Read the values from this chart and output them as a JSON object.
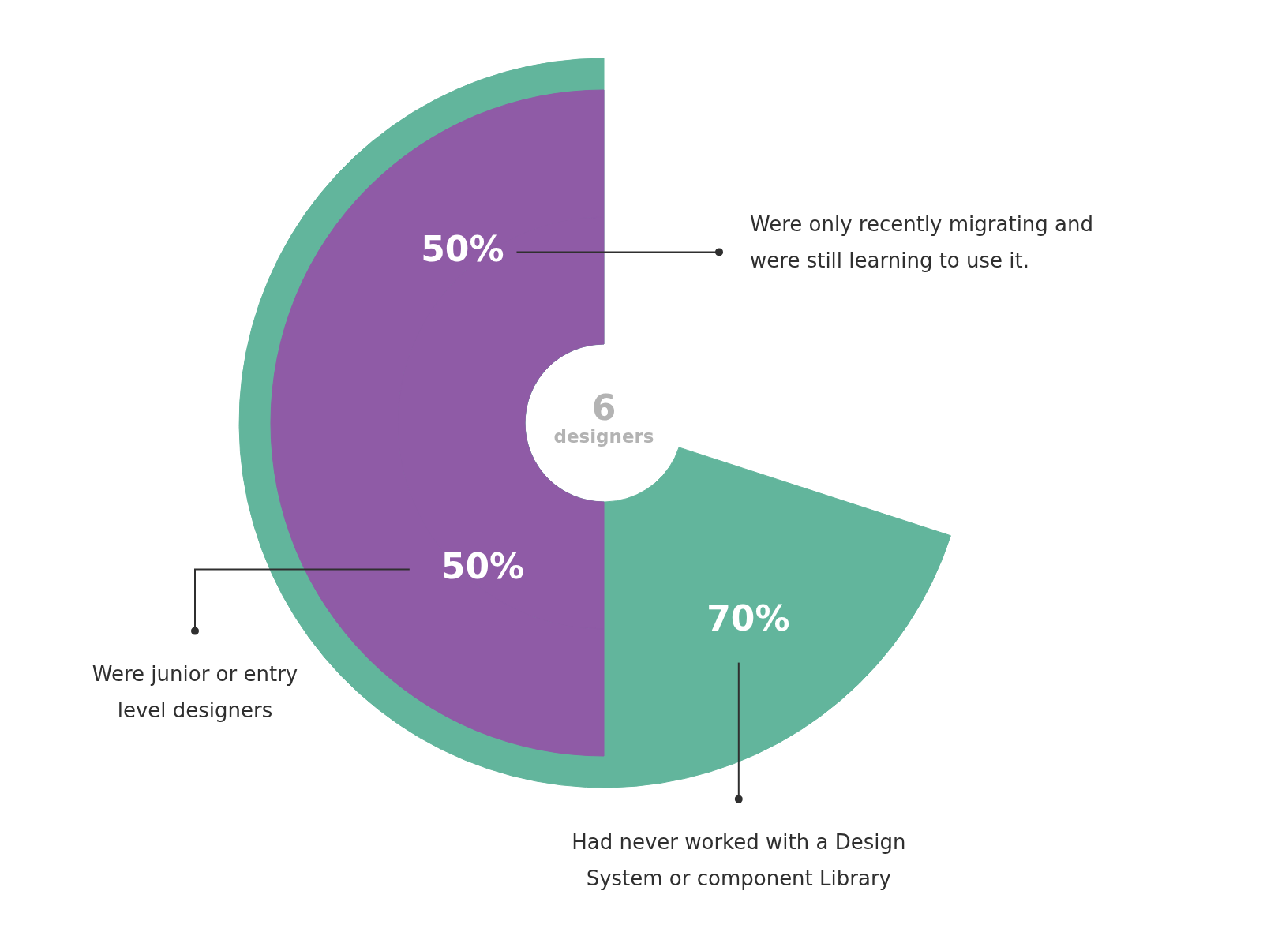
{
  "chart_data": {
    "type": "other",
    "categories": [
      "Were only recently migrating and were still learning to use it.",
      "Were junior or entry level designers",
      "Had never worked with a Design System or component Library"
    ],
    "values": [
      50,
      50,
      70
    ],
    "value_labels": [
      "50%",
      "50%",
      "70%"
    ],
    "colors": [
      "#8f5ba6",
      "#8f5ba6",
      "#62b59c"
    ],
    "annotations": [
      "6",
      "designers"
    ]
  }
}
